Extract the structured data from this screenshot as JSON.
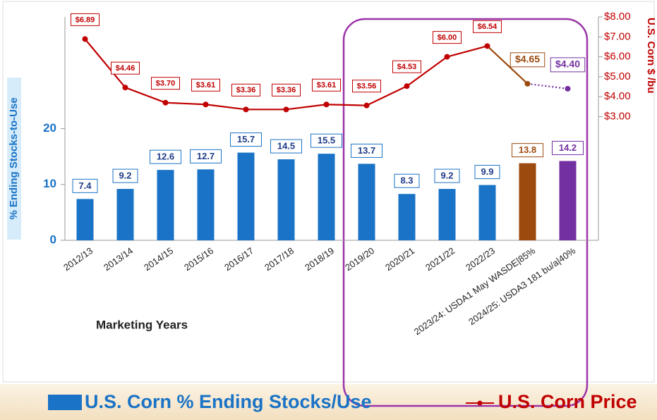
{
  "chart_data": {
    "type": "bar",
    "y_label": "% Ending Stocks-to-Use",
    "y2_label": "U.S. Corn $ /bu",
    "x_label": "Marketing Years",
    "categories": [
      "2012/13",
      "2013/14",
      "2014/15",
      "2015/16",
      "2016/17",
      "2017/18",
      "2018/19",
      "2019/20",
      "2020/21",
      "2021/22",
      "2022/23",
      "2023/24: USDA1 May WASDE|85%",
      "2024/25: USDA3 181 bu/a|40%"
    ],
    "series": [
      {
        "name": "U.S. Corn % Ending Stocks/Use",
        "type": "bar",
        "color": "#1a73c6",
        "colors": [
          "#1a73c6",
          "#1a73c6",
          "#1a73c6",
          "#1a73c6",
          "#1a73c6",
          "#1a73c6",
          "#1a73c6",
          "#1a73c6",
          "#1a73c6",
          "#1a73c6",
          "#1a73c6",
          "#9c4a0e",
          "#7230a0"
        ],
        "values": [
          7.4,
          9.2,
          12.6,
          12.7,
          15.7,
          14.5,
          15.5,
          13.7,
          8.3,
          9.2,
          9.9,
          13.8,
          14.2
        ]
      },
      {
        "name": "U.S. Corn Price",
        "type": "line",
        "axis": "y2",
        "color": "#c00000",
        "colors": [
          "#c00000",
          "#c00000",
          "#c00000",
          "#c00000",
          "#c00000",
          "#c00000",
          "#c00000",
          "#c00000",
          "#c00000",
          "#c00000",
          "#c00000",
          "#9c4a0e",
          "#7230a0"
        ],
        "values": [
          6.89,
          4.46,
          3.7,
          3.61,
          3.36,
          3.36,
          3.61,
          3.56,
          4.53,
          6.0,
          6.54,
          4.65,
          4.4
        ],
        "value_labels": [
          "$6.89",
          "$4.46",
          "$3.70",
          "$3.61",
          "$3.36",
          "$3.36",
          "$3.61",
          "$3.56",
          "$4.53",
          "$6.00",
          "$6.54",
          "$4.65",
          "$4.40"
        ]
      }
    ],
    "ylim": [
      0,
      40
    ],
    "yticks": [
      0,
      10,
      20
    ],
    "y2lim": [
      -3.2,
      8
    ],
    "y2ticks": [
      {
        "value": 3,
        "label": "$3.00"
      },
      {
        "value": 4,
        "label": "$4.00"
      },
      {
        "value": 5,
        "label": "$5.00"
      },
      {
        "value": 6,
        "label": "$6.00"
      },
      {
        "value": 7,
        "label": "$7.00"
      },
      {
        "value": 8,
        "label": "$8.00"
      }
    ],
    "legend": "bottom"
  }
}
